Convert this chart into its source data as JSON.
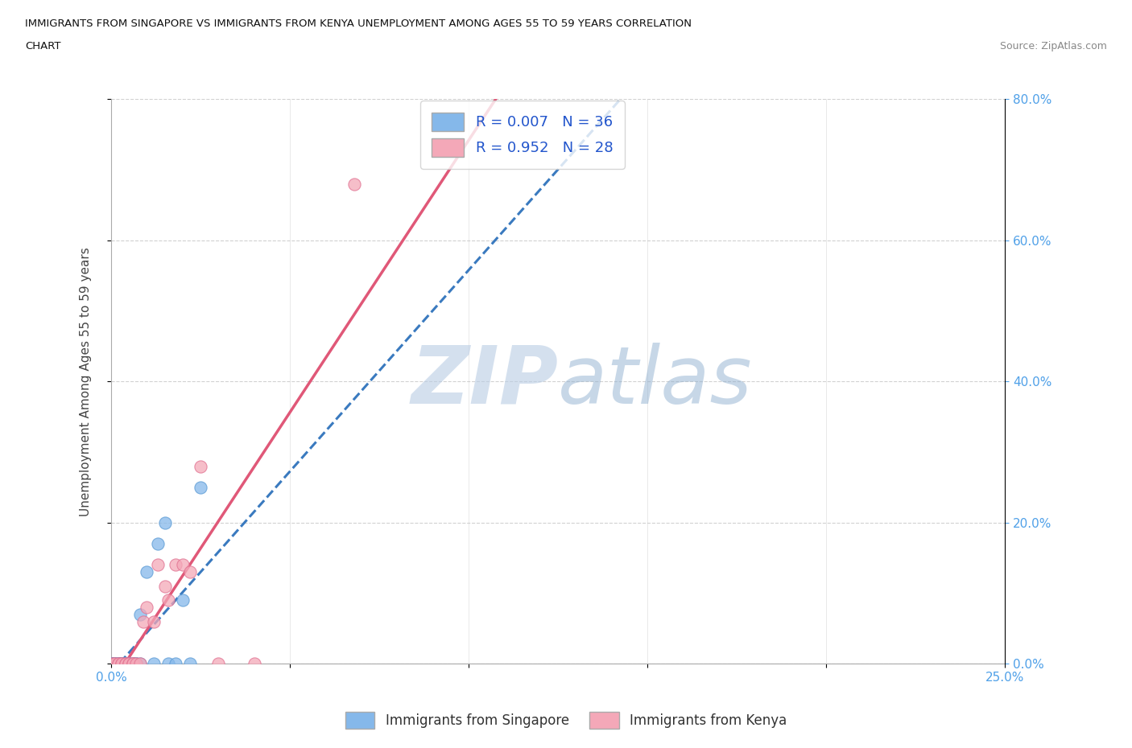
{
  "title_line1": "IMMIGRANTS FROM SINGAPORE VS IMMIGRANTS FROM KENYA UNEMPLOYMENT AMONG AGES 55 TO 59 YEARS CORRELATION",
  "title_line2": "CHART",
  "source_text": "Source: ZipAtlas.com",
  "ylabel": "Unemployment Among Ages 55 to 59 years",
  "xlim": [
    0.0,
    0.25
  ],
  "ylim": [
    0.0,
    0.8
  ],
  "xticks": [
    0.0,
    0.05,
    0.1,
    0.15,
    0.2,
    0.25
  ],
  "yticks": [
    0.0,
    0.2,
    0.4,
    0.6,
    0.8
  ],
  "singapore_color": "#85b8ea",
  "singapore_edge_color": "#5a9ad4",
  "kenya_color": "#f4a8b8",
  "kenya_edge_color": "#e07090",
  "singapore_line_color": "#3a7abf",
  "kenya_line_color": "#e05878",
  "singapore_R": 0.007,
  "singapore_N": 36,
  "kenya_R": 0.952,
  "kenya_N": 28,
  "legend_label_singapore": "R = 0.007   N = 36",
  "legend_label_kenya": "R = 0.952   N = 28",
  "watermark": "ZIPatlas",
  "watermark_color_zip": "#b8cce4",
  "watermark_color_atlas": "#90b8d8",
  "bg_color": "#ffffff",
  "singapore_x": [
    0.0,
    0.0,
    0.0,
    0.0,
    0.001,
    0.001,
    0.001,
    0.001,
    0.002,
    0.002,
    0.002,
    0.002,
    0.003,
    0.003,
    0.003,
    0.004,
    0.004,
    0.004,
    0.005,
    0.005,
    0.005,
    0.006,
    0.006,
    0.007,
    0.007,
    0.008,
    0.008,
    0.01,
    0.012,
    0.013,
    0.015,
    0.016,
    0.018,
    0.02,
    0.022,
    0.025
  ],
  "singapore_y": [
    0.0,
    0.0,
    0.0,
    0.0,
    0.0,
    0.0,
    0.0,
    0.0,
    0.0,
    0.0,
    0.0,
    0.0,
    0.0,
    0.0,
    0.0,
    0.0,
    0.0,
    0.0,
    0.0,
    0.0,
    0.0,
    0.0,
    0.0,
    0.0,
    0.0,
    0.0,
    0.07,
    0.13,
    0.0,
    0.17,
    0.2,
    0.0,
    0.0,
    0.09,
    0.0,
    0.25
  ],
  "kenya_x": [
    0.0,
    0.001,
    0.001,
    0.002,
    0.002,
    0.003,
    0.003,
    0.004,
    0.004,
    0.005,
    0.005,
    0.006,
    0.006,
    0.007,
    0.008,
    0.009,
    0.01,
    0.012,
    0.013,
    0.015,
    0.016,
    0.018,
    0.02,
    0.022,
    0.025,
    0.03,
    0.04,
    0.068
  ],
  "kenya_y": [
    0.0,
    0.0,
    0.0,
    0.0,
    0.0,
    0.0,
    0.0,
    0.0,
    0.0,
    0.0,
    0.0,
    0.0,
    0.0,
    0.0,
    0.0,
    0.06,
    0.08,
    0.06,
    0.14,
    0.11,
    0.09,
    0.14,
    0.14,
    0.13,
    0.28,
    0.0,
    0.0,
    0.68
  ],
  "footer_legend_singapore": "Immigrants from Singapore",
  "footer_legend_kenya": "Immigrants from Kenya",
  "right_tick_color": "#4fa0e8",
  "bottom_tick_color": "#4fa0e8"
}
